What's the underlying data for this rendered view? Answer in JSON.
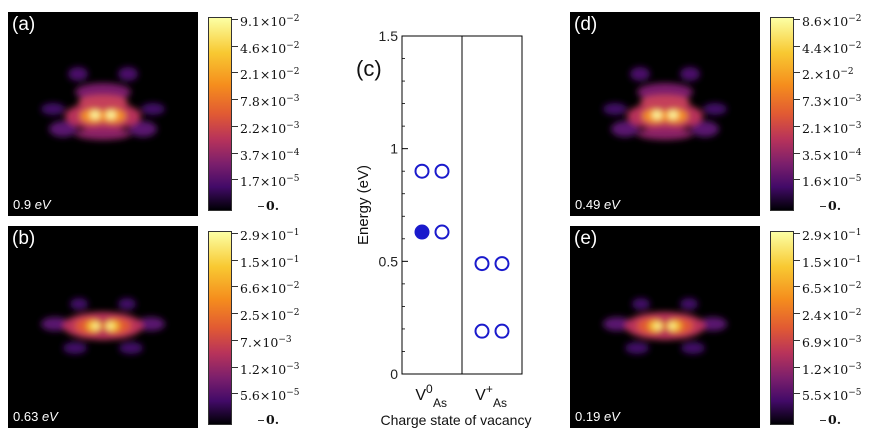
{
  "panels": [
    {
      "tag": "(a)",
      "energy_value": "0.9",
      "energy_unit": "eV",
      "colorbar": [
        {
          "m": "9.1",
          "e": "−2"
        },
        {
          "m": "4.6",
          "e": "−2"
        },
        {
          "m": "2.1",
          "e": "−2"
        },
        {
          "m": "7.8",
          "e": "−3"
        },
        {
          "m": "2.2",
          "e": "−3"
        },
        {
          "m": "3.7",
          "e": "−4"
        },
        {
          "m": "1.7",
          "e": "−5"
        },
        {
          "m": "0.",
          "e": ""
        }
      ]
    },
    {
      "tag": "(b)",
      "energy_value": "0.63",
      "energy_unit": "eV",
      "colorbar": [
        {
          "m": "2.9",
          "e": "−1"
        },
        {
          "m": "1.5",
          "e": "−1"
        },
        {
          "m": "6.6",
          "e": "−2"
        },
        {
          "m": "2.5",
          "e": "−2"
        },
        {
          "m": "7.",
          "e": "−3"
        },
        {
          "m": "1.2",
          "e": "−3"
        },
        {
          "m": "5.6",
          "e": "−5"
        },
        {
          "m": "0.",
          "e": ""
        }
      ]
    },
    {
      "tag": "(d)",
      "energy_value": "0.49",
      "energy_unit": "eV",
      "colorbar": [
        {
          "m": "8.6",
          "e": "−2"
        },
        {
          "m": "4.4",
          "e": "−2"
        },
        {
          "m": "2.",
          "e": "−2"
        },
        {
          "m": "7.3",
          "e": "−3"
        },
        {
          "m": "2.1",
          "e": "−3"
        },
        {
          "m": "3.5",
          "e": "−4"
        },
        {
          "m": "1.6",
          "e": "−5"
        },
        {
          "m": "0.",
          "e": ""
        }
      ]
    },
    {
      "tag": "(e)",
      "energy_value": "0.19",
      "energy_unit": "eV",
      "colorbar": [
        {
          "m": "2.9",
          "e": "−1"
        },
        {
          "m": "1.5",
          "e": "−1"
        },
        {
          "m": "6.5",
          "e": "−2"
        },
        {
          "m": "2.4",
          "e": "−2"
        },
        {
          "m": "6.9",
          "e": "−3"
        },
        {
          "m": "1.2",
          "e": "−3"
        },
        {
          "m": "5.5",
          "e": "−5"
        },
        {
          "m": "0.",
          "e": ""
        }
      ]
    }
  ],
  "colorbar_times": "×10",
  "chart_data": {
    "type": "scatter",
    "panel_label": "(c)",
    "ylabel": "Energy (eV)",
    "xlabel": "Charge state of vacancy",
    "ylim": [
      0,
      1.5
    ],
    "yticks": [
      "0",
      "0.5",
      "1",
      "1.5"
    ],
    "categories": [
      {
        "main": "V",
        "sup": "0",
        "sub": "As"
      },
      {
        "main": "V",
        "sup": "+",
        "sub": "As"
      }
    ],
    "levels": [
      {
        "category": 0,
        "energy": 0.9,
        "occupation": [
          "empty",
          "empty"
        ]
      },
      {
        "category": 0,
        "energy": 0.63,
        "occupation": [
          "filled",
          "empty"
        ]
      },
      {
        "category": 1,
        "energy": 0.49,
        "occupation": [
          "empty",
          "empty"
        ]
      },
      {
        "category": 1,
        "energy": 0.19,
        "occupation": [
          "empty",
          "empty"
        ]
      }
    ],
    "marker_color": "#1a1acc"
  }
}
